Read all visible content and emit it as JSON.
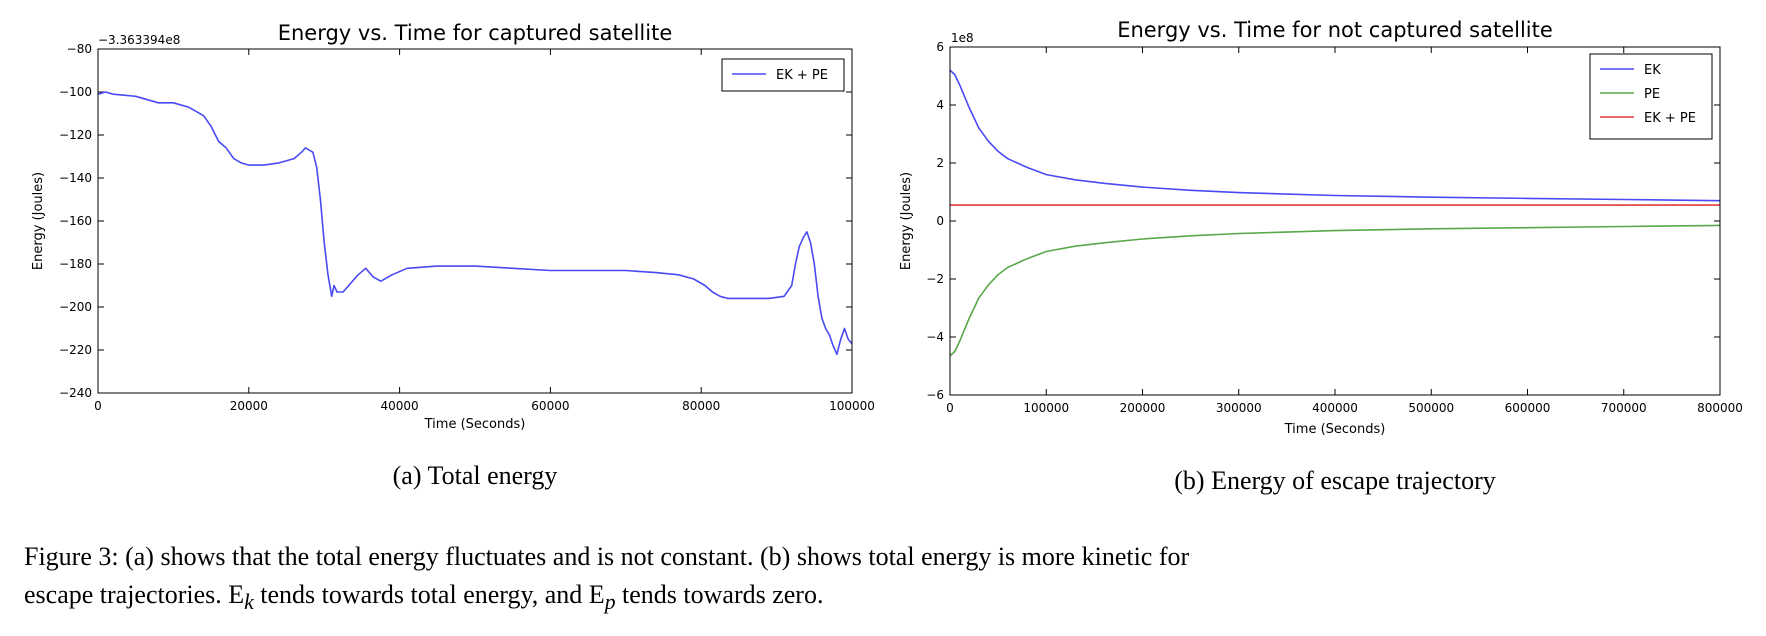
{
  "chart_data": [
    {
      "type": "line",
      "title": "Energy vs. Time for captured satellite",
      "xlabel": "Time (Seconds)",
      "ylabel": "Energy (Joules)",
      "offset_label": "−3.363394e8",
      "xlim": [
        0,
        100000
      ],
      "ylim": [
        -240,
        -80
      ],
      "xticks": [
        0,
        20000,
        40000,
        60000,
        80000,
        100000
      ],
      "xtick_labels": [
        "0",
        "20000",
        "40000",
        "60000",
        "80000",
        "100000"
      ],
      "yticks": [
        -240,
        -220,
        -200,
        -180,
        -160,
        -140,
        -120,
        -100,
        -80
      ],
      "ytick_labels": [
        "−240",
        "−220",
        "−200",
        "−180",
        "−160",
        "−140",
        "−120",
        "−100",
        "−80"
      ],
      "legend_position": "top-right",
      "series": [
        {
          "name": "EK + PE",
          "color": "#4a4af5",
          "x": [
            0,
            1000,
            2000,
            5000,
            8000,
            10000,
            12000,
            14000,
            15000,
            16000,
            17000,
            18000,
            19000,
            20000,
            22000,
            24000,
            26000,
            27000,
            27500,
            28000,
            28500,
            29000,
            29500,
            30000,
            30500,
            31000,
            31300,
            31700,
            32500,
            33500,
            34500,
            35500,
            36500,
            37500,
            39000,
            41000,
            45000,
            50000,
            55000,
            60000,
            65000,
            70000,
            74000,
            77000,
            79000,
            80500,
            81500,
            82500,
            83500,
            84500,
            86000,
            89000,
            91000,
            92000,
            92500,
            93000,
            93500,
            94000,
            94500,
            95000,
            95500,
            96000,
            96500,
            97000,
            97500,
            98000,
            98500,
            99000,
            99500,
            100000
          ],
          "y": [
            -101,
            -100,
            -101,
            -102,
            -105,
            -105,
            -107,
            -111,
            -116,
            -123,
            -126,
            -131,
            -133,
            -134,
            -134,
            -133,
            -131,
            -128,
            -126,
            -127,
            -128,
            -135,
            -150,
            -170,
            -185,
            -195,
            -190,
            -193,
            -193,
            -189,
            -185,
            -182,
            -186,
            -188,
            -185,
            -182,
            -181,
            -181,
            -182,
            -183,
            -183,
            -183,
            -184,
            -185,
            -187,
            -190,
            -193,
            -195,
            -196,
            -196,
            -196,
            -196,
            -195,
            -190,
            -180,
            -172,
            -168,
            -165,
            -170,
            -180,
            -195,
            -205,
            -210,
            -213,
            -218,
            -222,
            -215,
            -210,
            -215,
            -217
          ]
        }
      ]
    },
    {
      "type": "line",
      "title": "Energy vs. Time for not captured satellite",
      "xlabel": "Time (Seconds)",
      "ylabel": "Energy (Joules)",
      "offset_label": "1e8",
      "xlim": [
        0,
        800000
      ],
      "ylim": [
        -6,
        6
      ],
      "xticks": [
        0,
        100000,
        200000,
        300000,
        400000,
        500000,
        600000,
        700000,
        800000
      ],
      "xtick_labels": [
        "0",
        "100000",
        "200000",
        "300000",
        "400000",
        "500000",
        "600000",
        "700000",
        "800000"
      ],
      "yticks": [
        -6,
        -4,
        -2,
        0,
        2,
        4,
        6
      ],
      "ytick_labels": [
        "−6",
        "−4",
        "−2",
        "0",
        "2",
        "4",
        "6"
      ],
      "legend_position": "top-right",
      "series": [
        {
          "name": "EK",
          "color": "#4a4af5",
          "x": [
            0,
            5000,
            10000,
            20000,
            30000,
            40000,
            50000,
            60000,
            80000,
            100000,
            130000,
            160000,
            200000,
            250000,
            300000,
            400000,
            500000,
            600000,
            700000,
            800000
          ],
          "y": [
            5.2,
            5.05,
            4.7,
            3.9,
            3.2,
            2.75,
            2.4,
            2.15,
            1.85,
            1.6,
            1.42,
            1.3,
            1.17,
            1.06,
            0.98,
            0.88,
            0.82,
            0.78,
            0.74,
            0.7
          ]
        },
        {
          "name": "PE",
          "color": "#5aa84a",
          "x": [
            0,
            5000,
            10000,
            20000,
            30000,
            40000,
            50000,
            60000,
            80000,
            100000,
            130000,
            160000,
            200000,
            250000,
            300000,
            400000,
            500000,
            600000,
            700000,
            800000
          ],
          "y": [
            -4.65,
            -4.5,
            -4.15,
            -3.35,
            -2.65,
            -2.2,
            -1.85,
            -1.6,
            -1.3,
            -1.05,
            -0.87,
            -0.75,
            -0.62,
            -0.51,
            -0.43,
            -0.33,
            -0.27,
            -0.23,
            -0.19,
            -0.15
          ]
        },
        {
          "name": "EK + PE",
          "color": "#e03c3c",
          "x": [
            0,
            800000
          ],
          "y": [
            0.55,
            0.55
          ]
        }
      ]
    }
  ],
  "subcaptions": [
    "(a) Total energy",
    "(b) Energy of escape trajectory"
  ],
  "caption": {
    "line1": "Figure 3: (a) shows that the total energy fluctuates and is not constant. (b) shows total energy is more kinetic for",
    "line2_a": "escape trajectories. E",
    "line2_sub1": "k",
    "line2_b": " tends towards total energy, and E",
    "line2_sub2": "p",
    "line2_c": " tends towards zero."
  }
}
